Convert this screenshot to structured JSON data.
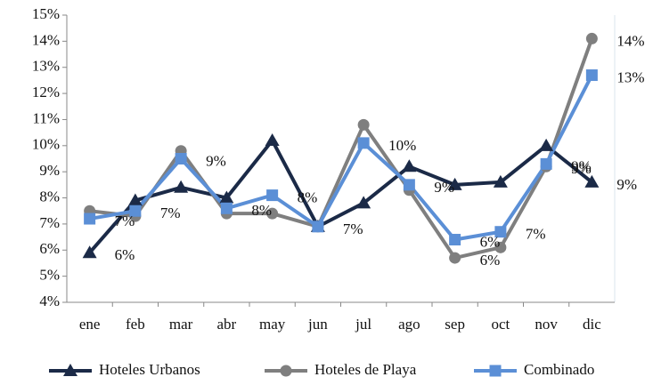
{
  "chart_data": {
    "type": "line",
    "categories": [
      "ene",
      "feb",
      "mar",
      "abr",
      "may",
      "jun",
      "jul",
      "ago",
      "sep",
      "oct",
      "nov",
      "dic"
    ],
    "series": [
      {
        "name": "Hoteles Urbanos",
        "color": "#1b2a47",
        "marker": "triangle",
        "values": [
          5.9,
          7.9,
          8.4,
          8.0,
          10.2,
          6.9,
          7.8,
          9.2,
          8.5,
          8.6,
          10.0,
          8.6
        ],
        "value_labels": [
          "6%",
          null,
          null,
          null,
          null,
          null,
          null,
          null,
          null,
          null,
          null,
          "9%"
        ]
      },
      {
        "name": "Hoteles de Playa",
        "color": "#7f7f7f",
        "marker": "circle",
        "values": [
          7.5,
          7.3,
          9.8,
          7.4,
          7.4,
          6.9,
          10.8,
          8.3,
          5.7,
          6.1,
          9.2,
          14.1
        ],
        "value_labels": [
          null,
          null,
          null,
          null,
          null,
          null,
          null,
          null,
          "6%",
          null,
          "9%",
          "14%"
        ]
      },
      {
        "name": "Combinado",
        "color": "#5b8fd6",
        "marker": "square",
        "values": [
          7.2,
          7.5,
          9.5,
          7.6,
          8.1,
          6.9,
          10.1,
          8.5,
          6.4,
          6.7,
          9.3,
          12.7
        ],
        "value_labels": [
          "7%",
          "7%",
          "9%",
          "8%",
          "8%",
          "7%",
          "10%",
          "9%",
          "6%",
          "7%",
          "9%",
          "13%"
        ]
      }
    ],
    "ylim": [
      4,
      15
    ],
    "yticks": [
      {
        "value": 4,
        "label": "4%"
      },
      {
        "value": 5,
        "label": "5%"
      },
      {
        "value": 6,
        "label": "6%"
      },
      {
        "value": 7,
        "label": "7%"
      },
      {
        "value": 8,
        "label": "8%"
      },
      {
        "value": 9,
        "label": "9%"
      },
      {
        "value": 10,
        "label": "10%"
      },
      {
        "value": 11,
        "label": "11%"
      },
      {
        "value": 12,
        "label": "12%"
      },
      {
        "value": 13,
        "label": "13%"
      },
      {
        "value": 14,
        "label": "14%"
      },
      {
        "value": 15,
        "label": "15%"
      }
    ],
    "grid": false,
    "legend": "bottom"
  }
}
